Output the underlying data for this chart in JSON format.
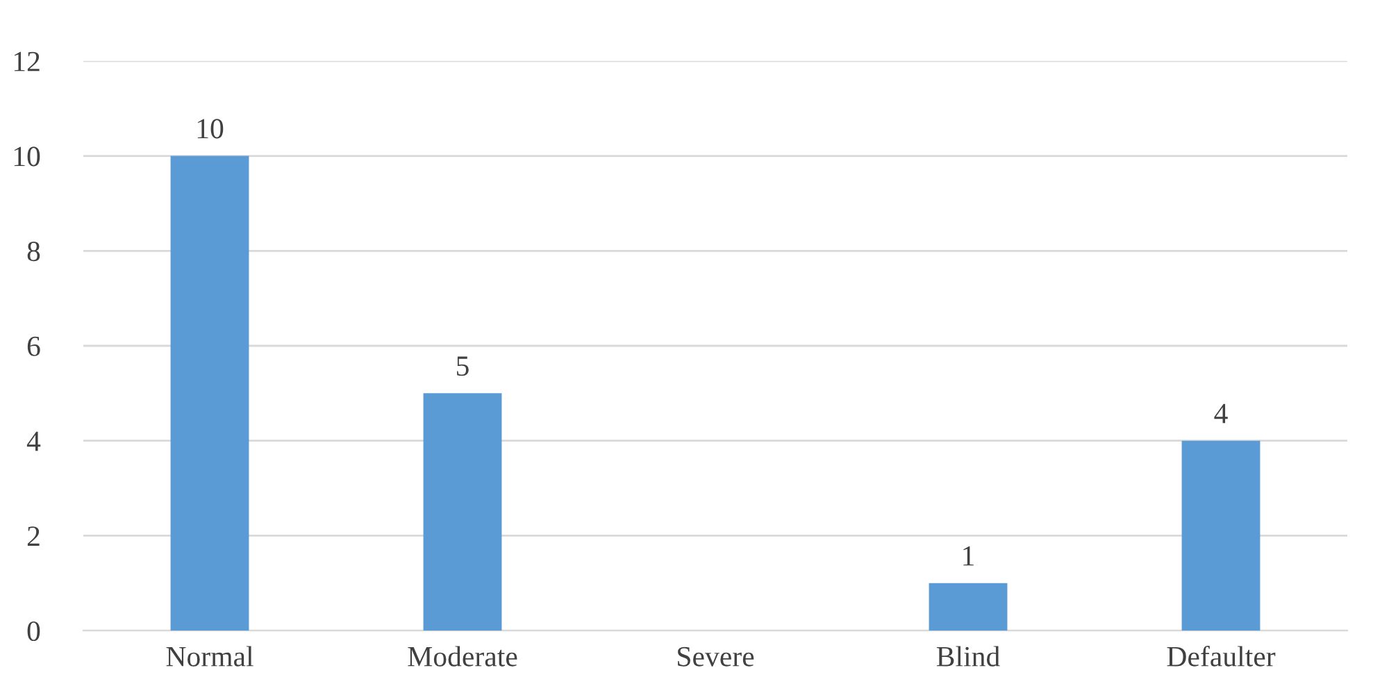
{
  "chart_data": {
    "type": "bar",
    "categories": [
      "Normal",
      "Moderate",
      "Severe",
      "Blind",
      "Defaulter"
    ],
    "values": [
      10,
      5,
      0,
      1,
      4
    ],
    "value_labels": [
      "10",
      "5",
      null,
      "1",
      "4"
    ],
    "color": "#5b9bd5",
    "ylim": [
      0,
      12
    ],
    "yticks": [
      0,
      2,
      4,
      6,
      8,
      10,
      12
    ],
    "grid": "y"
  }
}
